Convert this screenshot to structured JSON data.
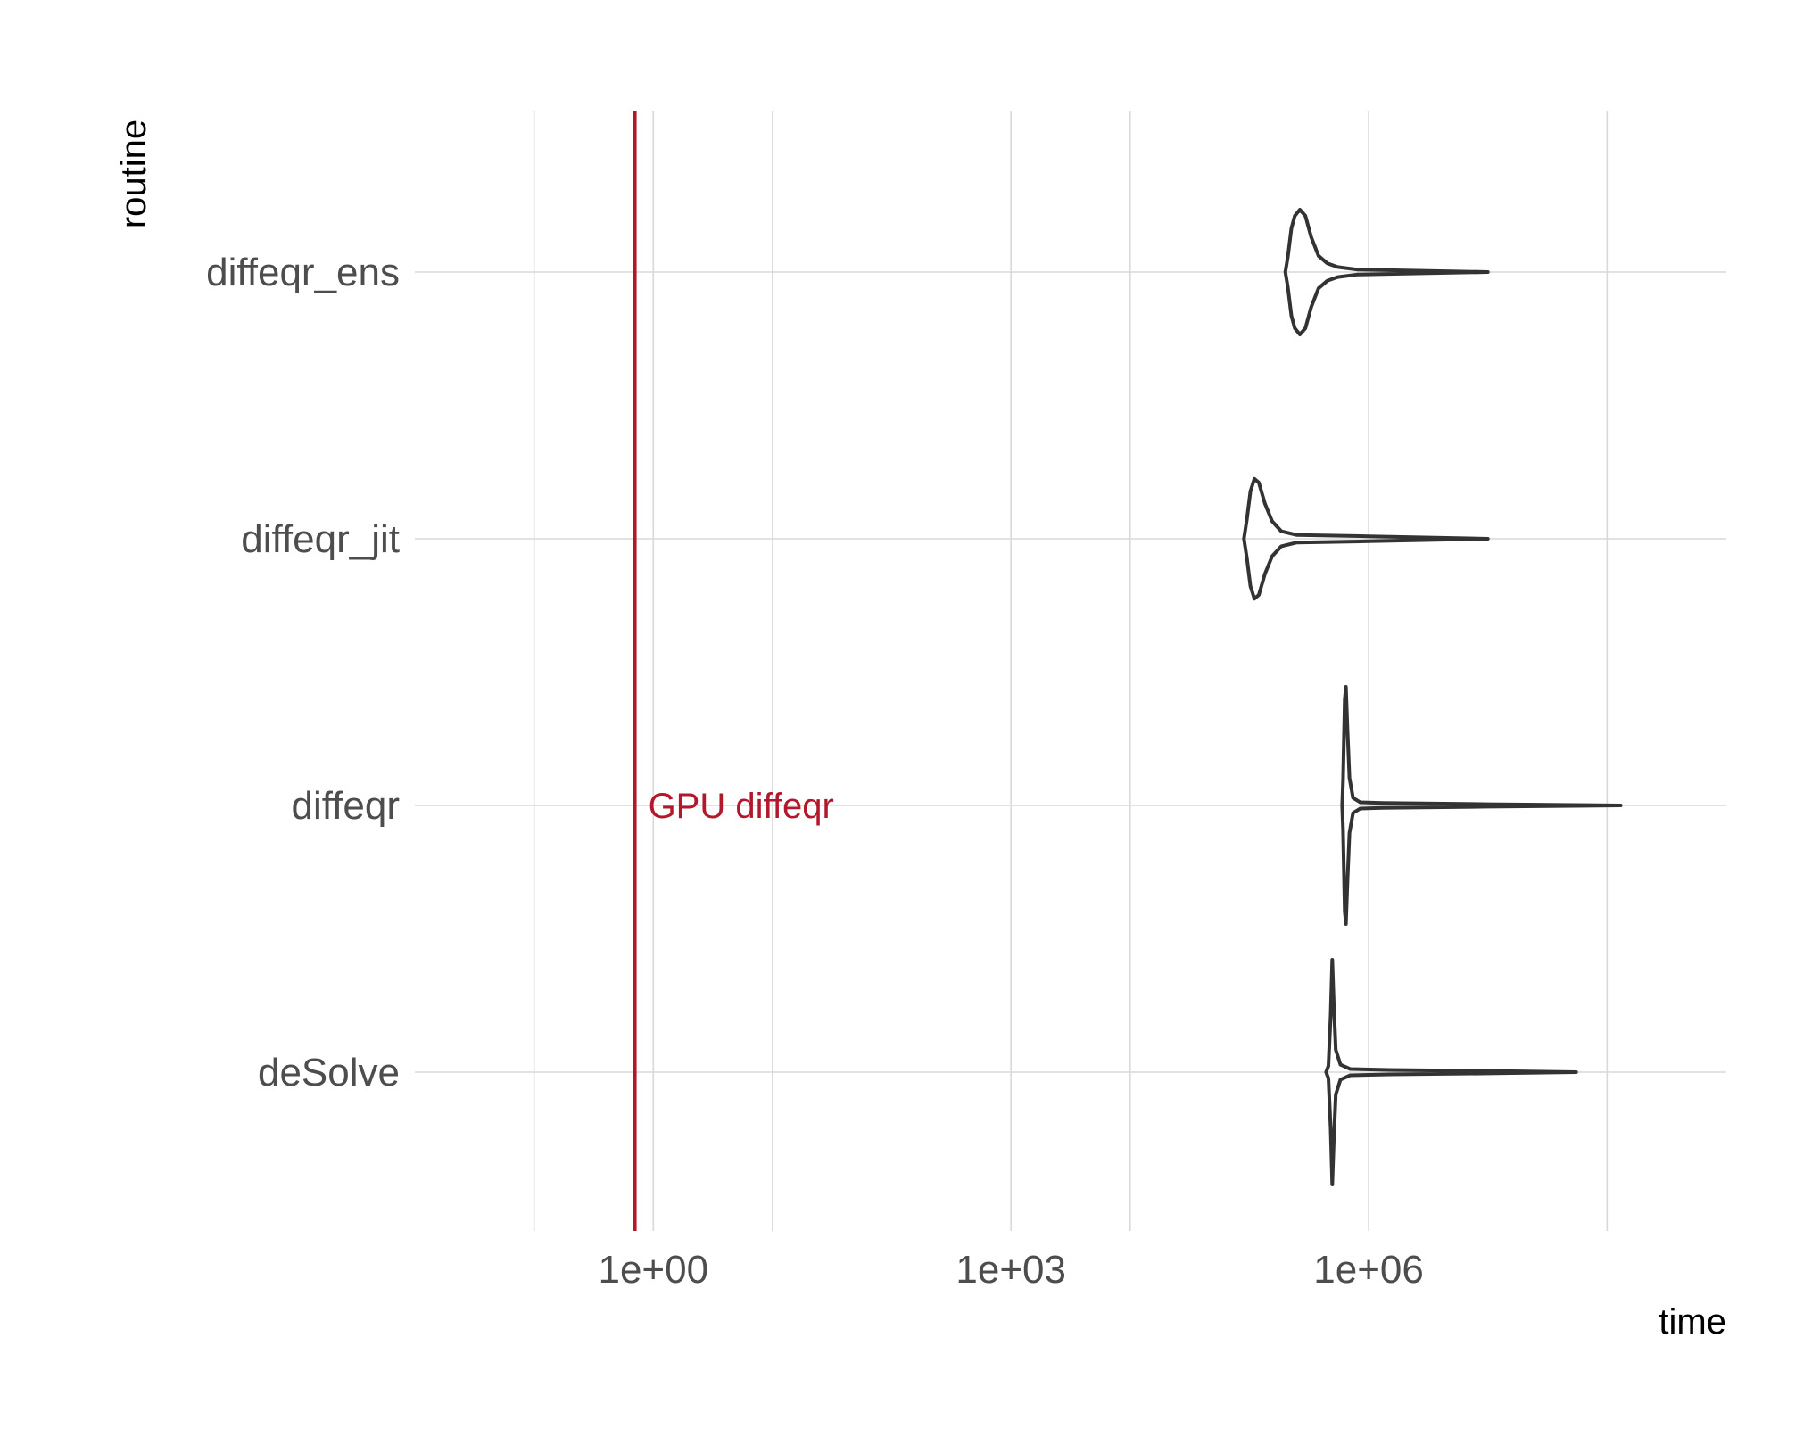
{
  "chart_data": {
    "type": "violin",
    "title": "",
    "xlabel": "time",
    "ylabel": "routine",
    "x_scale": "log10",
    "xlim": [
      0.01,
      1000000000
    ],
    "x_ticks": [
      {
        "value": 1,
        "label": "1e+00"
      },
      {
        "value": 1000,
        "label": "1e+03"
      },
      {
        "value": 1000000,
        "label": "1e+06"
      }
    ],
    "x_minor_gridlines": [
      0.1,
      10,
      10000,
      100000000
    ],
    "categories": [
      "diffeqr_ens",
      "diffeqr_jit",
      "diffeqr",
      "deSolve"
    ],
    "grid": true,
    "legend": "none",
    "series": [
      {
        "category": "diffeqr_ens",
        "profile": [
          [
            200000,
            0
          ],
          [
            210000,
            0.12
          ],
          [
            225000,
            0.35
          ],
          [
            240000,
            0.45
          ],
          [
            265000,
            0.5
          ],
          [
            295000,
            0.45
          ],
          [
            330000,
            0.28
          ],
          [
            380000,
            0.13
          ],
          [
            450000,
            0.07
          ],
          [
            550000,
            0.04
          ],
          [
            800000,
            0.02
          ],
          [
            10000000,
            0
          ]
        ]
      },
      {
        "category": "diffeqr_jit",
        "profile": [
          [
            90000,
            0
          ],
          [
            95000,
            0.15
          ],
          [
            102000,
            0.38
          ],
          [
            110000,
            0.48
          ],
          [
            120000,
            0.45
          ],
          [
            135000,
            0.28
          ],
          [
            155000,
            0.14
          ],
          [
            185000,
            0.06
          ],
          [
            250000,
            0.03
          ],
          [
            1000000,
            0.02
          ],
          [
            10000000,
            0
          ]
        ]
      },
      {
        "category": "diffeqr",
        "profile": [
          [
            600000,
            0
          ],
          [
            610000,
            0.2
          ],
          [
            630000,
            0.85
          ],
          [
            645000,
            0.95
          ],
          [
            665000,
            0.6
          ],
          [
            690000,
            0.22
          ],
          [
            740000,
            0.06
          ],
          [
            850000,
            0.025
          ],
          [
            1300000,
            0.02
          ],
          [
            10000000,
            0.01
          ],
          [
            130000000,
            0
          ]
        ]
      },
      {
        "category": "deSolve",
        "profile": [
          [
            440000,
            0
          ],
          [
            460000,
            0.05
          ],
          [
            480000,
            0.45
          ],
          [
            495000,
            0.9
          ],
          [
            510000,
            0.55
          ],
          [
            530000,
            0.18
          ],
          [
            580000,
            0.06
          ],
          [
            700000,
            0.025
          ],
          [
            1500000,
            0.018
          ],
          [
            10000000,
            0.01
          ],
          [
            55000000,
            0
          ]
        ]
      }
    ],
    "reference_line": {
      "x": 0.7,
      "label": "GPU diffeqr",
      "color": "#b2182b"
    },
    "outline_color": "#333333"
  }
}
